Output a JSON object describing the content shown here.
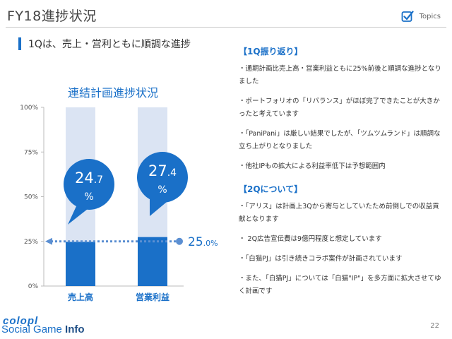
{
  "header": {
    "title": "FY18進捗状況",
    "topics_label": "Topics",
    "topics_icon": "checkbox-icon"
  },
  "headline": "1Qは、売上・営利ともに順調な進捗",
  "chart_data": {
    "type": "bar",
    "title": "連結計画進捗状況",
    "categories": [
      "売上高",
      "営業利益"
    ],
    "series": [
      {
        "values": [
          24.7,
          27.4
        ]
      }
    ],
    "background_values": [
      100,
      100
    ],
    "ylim": [
      0,
      100
    ],
    "yticks": [
      "0%",
      "25%",
      "50%",
      "75%",
      "100%"
    ],
    "ytick_values": [
      0,
      25,
      50,
      75,
      100
    ],
    "callouts": [
      {
        "main": "24.7",
        "main_int": "24",
        "main_dec": ".7",
        "unit": "%"
      },
      {
        "main": "27.4",
        "main_int": "27",
        "main_dec": ".4",
        "unit": "%"
      }
    ],
    "reference_line": {
      "value": 25.0,
      "label_int": "25",
      "label_dec": ".0%"
    },
    "colors": {
      "bar": "#1a70c8",
      "bar_background": "#dbe4f3",
      "bubble": "#1a70c8",
      "reference_line": "#5b8fd2"
    },
    "grid": false
  },
  "right": {
    "sections": [
      {
        "heading": "【1Q振り返り】",
        "bullets": [
          "・通期計画比売上高・営業利益ともに25%前後と順調な進捗となりました",
          "・ポートフォリオの「リバランス」がほぼ完了できたことが大きかったと考えています",
          "・「PaniPani」は厳しい結果でしたが、「ツムツムランド」は順調な立ち上がりとなりました",
          "・他社IPもの拡大による利益率低下は予想範囲内"
        ]
      },
      {
        "heading": "【2Qについて】",
        "bullets": [
          "・「アリス」は計画上3Qから寄与としていたため前倒しでの収益貢献となります",
          "・ 2Q広告宣伝費は9億円程度と想定しています",
          "・「白猫PJ」は引き続きコラボ案件が計画されています",
          "・また、「白猫PJ」については「白猫\"IP\"」を多方面に拡大させてゆく計画です"
        ]
      }
    ]
  },
  "footer": {
    "logo_top": "colopl",
    "logo_text": "Social Game ",
    "logo_info": "Info",
    "page_number": "22"
  }
}
